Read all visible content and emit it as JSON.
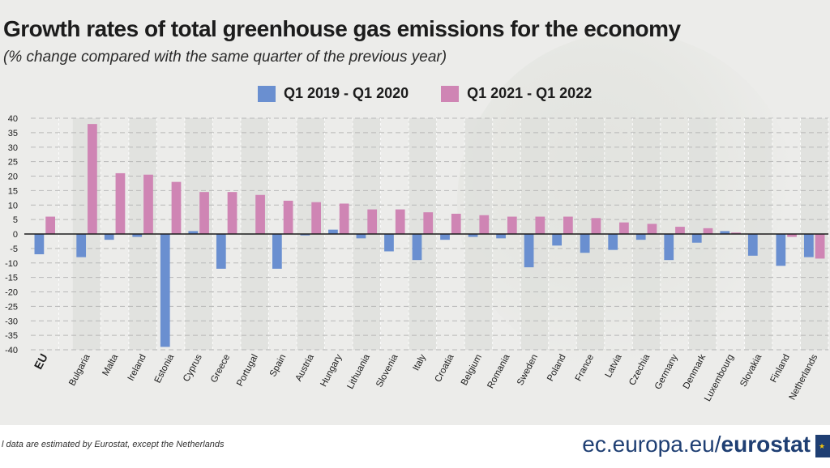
{
  "colors": {
    "series1": "#6a8fd0",
    "series2": "#cf85b4",
    "text": "#1c1c1c",
    "brand": "#1f3f73"
  },
  "chart_data": {
    "type": "bar",
    "title": "Growth rates of total greenhouse gas emissions for the economy",
    "subtitle": "(% change compared with the same quarter of the previous year)",
    "ylim": [
      -40,
      40
    ],
    "yticks": [
      40,
      35,
      30,
      25,
      20,
      15,
      10,
      5,
      0,
      -5,
      -10,
      -15,
      -20,
      -25,
      -30,
      -35,
      -40
    ],
    "legend_position": "top",
    "categories": [
      "EU",
      "Bulgaria",
      "Malta",
      "Ireland",
      "Estonia",
      "Cyprus",
      "Greece",
      "Portugal",
      "Spain",
      "Austria",
      "Hungary",
      "Lithuania",
      "Slovenia",
      "Italy",
      "Croatia",
      "Belgium",
      "Romania",
      "Sweden",
      "Poland",
      "France",
      "Latvia",
      "Czechia",
      "Germany",
      "Denmark",
      "Luxembourg",
      "Slovakia",
      "Finland",
      "Netherlands"
    ],
    "series": [
      {
        "name": "Q1 2019 - Q1 2020",
        "values": [
          -7,
          -8,
          -2,
          -1,
          -39,
          1,
          -12,
          0,
          -12,
          -0.5,
          1.5,
          -1.5,
          -6,
          -9,
          -2,
          -1,
          -1.5,
          -11.5,
          -4,
          -6.5,
          -5.5,
          -2,
          -9,
          -3,
          1,
          -7.5,
          -11,
          -8
        ]
      },
      {
        "name": "Q1 2021 - Q1 2022",
        "values": [
          6,
          38,
          21,
          20.5,
          18,
          14.5,
          14.5,
          13.5,
          11.5,
          11,
          10.5,
          8.5,
          8.5,
          7.5,
          7,
          6.5,
          6,
          6,
          6,
          5.5,
          4,
          3.5,
          2.5,
          2,
          0.5,
          0,
          -1,
          -8.5
        ]
      }
    ]
  },
  "footer": {
    "footnote": "l data are estimated by Eurostat, except the Netherlands",
    "brand_light": "ec.europa.eu/",
    "brand_bold": "eurostat"
  }
}
